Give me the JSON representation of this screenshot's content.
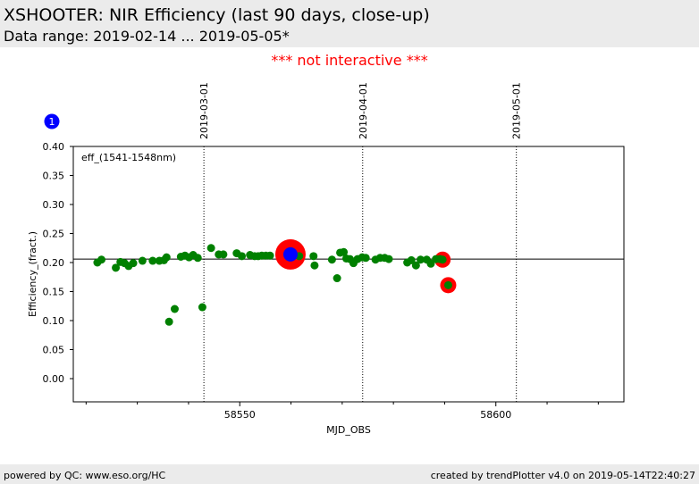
{
  "header": {
    "title": "XSHOOTER: NIR Efficiency (last 90 days, close-up)",
    "subtitle": "Data range: 2019-02-14 ... 2019-05-05*"
  },
  "notice": "*** not interactive ***",
  "footer": {
    "left": "powered by QC: www.eso.org/HC",
    "right": "created by trendPlotter v4.0 on 2019-05-14T22:40:27"
  },
  "colors": {
    "points": "#008000",
    "outlier": "#ff0000",
    "latest": "#0000ff",
    "date_lines": "#000000"
  },
  "chart_data": {
    "type": "scatter",
    "xlabel": "MJD_OBS",
    "ylabel": "Efficiency_(fract.)",
    "xlim": [
      58517.5,
      58625
    ],
    "ylim": [
      -0.04,
      0.4
    ],
    "x_ticks": [
      58550,
      58600
    ],
    "y_ticks": [
      0.0,
      0.05,
      0.1,
      0.15,
      0.2,
      0.25,
      0.3,
      0.35,
      0.4
    ],
    "y_tick_labels": [
      "0.00",
      "0.05",
      "0.10",
      "0.15",
      "0.20",
      "0.25",
      "0.30",
      "0.35",
      "0.40"
    ],
    "annotation": "eff_(1541-1548nm)",
    "reference_line": 0.206,
    "date_markers": [
      {
        "mjd": 58543.0,
        "label": "2019-03-01"
      },
      {
        "mjd": 58574.0,
        "label": "2019-04-01"
      },
      {
        "mjd": 58604.0,
        "label": "2019-05-01"
      }
    ],
    "marker_badge": "1",
    "points": [
      {
        "x": 58522.2,
        "y": 0.2
      },
      {
        "x": 58523.0,
        "y": 0.205
      },
      {
        "x": 58525.8,
        "y": 0.191
      },
      {
        "x": 58526.7,
        "y": 0.201
      },
      {
        "x": 58527.5,
        "y": 0.199
      },
      {
        "x": 58528.3,
        "y": 0.194
      },
      {
        "x": 58529.2,
        "y": 0.199
      },
      {
        "x": 58531.0,
        "y": 0.203
      },
      {
        "x": 58533.0,
        "y": 0.203
      },
      {
        "x": 58534.3,
        "y": 0.203
      },
      {
        "x": 58535.2,
        "y": 0.204
      },
      {
        "x": 58535.7,
        "y": 0.209
      },
      {
        "x": 58536.2,
        "y": 0.098
      },
      {
        "x": 58537.3,
        "y": 0.12
      },
      {
        "x": 58538.5,
        "y": 0.21
      },
      {
        "x": 58539.3,
        "y": 0.212
      },
      {
        "x": 58540.1,
        "y": 0.209
      },
      {
        "x": 58540.9,
        "y": 0.213
      },
      {
        "x": 58541.8,
        "y": 0.208
      },
      {
        "x": 58542.7,
        "y": 0.123
      },
      {
        "x": 58544.4,
        "y": 0.225
      },
      {
        "x": 58545.9,
        "y": 0.214
      },
      {
        "x": 58546.8,
        "y": 0.214
      },
      {
        "x": 58549.4,
        "y": 0.216
      },
      {
        "x": 58550.4,
        "y": 0.211
      },
      {
        "x": 58552.0,
        "y": 0.213
      },
      {
        "x": 58552.9,
        "y": 0.211
      },
      {
        "x": 58553.6,
        "y": 0.211
      },
      {
        "x": 58554.3,
        "y": 0.212
      },
      {
        "x": 58555.1,
        "y": 0.212
      },
      {
        "x": 58555.9,
        "y": 0.212
      },
      {
        "x": 58561.6,
        "y": 0.211
      },
      {
        "x": 58564.4,
        "y": 0.211
      },
      {
        "x": 58564.6,
        "y": 0.195
      },
      {
        "x": 58568.0,
        "y": 0.205
      },
      {
        "x": 58569.0,
        "y": 0.173
      },
      {
        "x": 58569.6,
        "y": 0.217
      },
      {
        "x": 58570.3,
        "y": 0.218
      },
      {
        "x": 58570.8,
        "y": 0.207
      },
      {
        "x": 58571.5,
        "y": 0.206
      },
      {
        "x": 58572.2,
        "y": 0.199
      },
      {
        "x": 58573.0,
        "y": 0.206
      },
      {
        "x": 58573.9,
        "y": 0.209
      },
      {
        "x": 58574.6,
        "y": 0.208
      },
      {
        "x": 58576.5,
        "y": 0.205
      },
      {
        "x": 58577.4,
        "y": 0.208
      },
      {
        "x": 58578.3,
        "y": 0.208
      },
      {
        "x": 58579.1,
        "y": 0.206
      },
      {
        "x": 58582.7,
        "y": 0.2
      },
      {
        "x": 58583.5,
        "y": 0.204
      },
      {
        "x": 58584.4,
        "y": 0.195
      },
      {
        "x": 58585.3,
        "y": 0.205
      },
      {
        "x": 58586.5,
        "y": 0.205
      },
      {
        "x": 58587.3,
        "y": 0.198
      },
      {
        "x": 58588.3,
        "y": 0.206
      },
      {
        "x": 58589.1,
        "y": 0.206
      }
    ],
    "outliers": [
      {
        "x": 58589.6,
        "y": 0.205
      },
      {
        "x": 58590.7,
        "y": 0.161
      }
    ],
    "latest": {
      "x": 58559.9,
      "y": 0.214
    }
  }
}
